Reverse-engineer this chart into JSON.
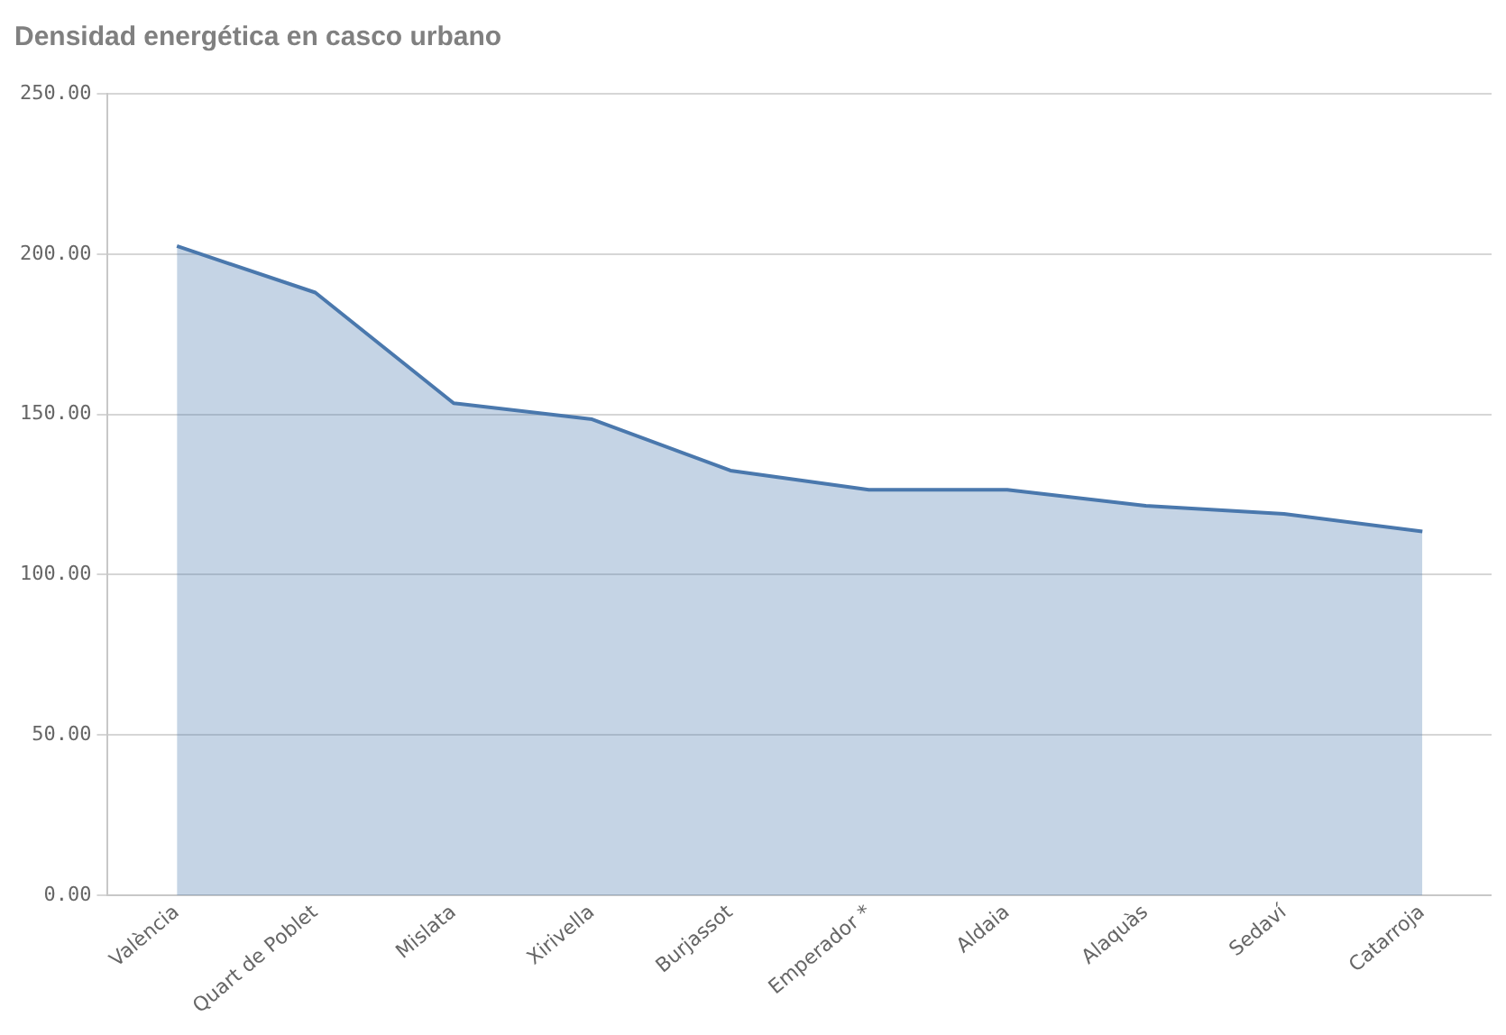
{
  "chart_data": {
    "type": "area",
    "title": "Densidad energética en casco urbano",
    "categories": [
      "València",
      "Quart de Poblet",
      "Mislata",
      "Xirivella",
      "Burjassot",
      "Emperador *",
      "Aldaia",
      "Alaquàs",
      "Sedaví",
      "Catarroja"
    ],
    "series": [
      {
        "color": "#4a78ad",
        "values": [
          202.5,
          188,
          153.5,
          148.5,
          132.5,
          126.5,
          126.5,
          121.5,
          119,
          113.5
        ]
      }
    ],
    "ylim": [
      0,
      250
    ],
    "yticks": [
      {
        "value": 0,
        "label": "0.00"
      },
      {
        "value": 50,
        "label": "50.00"
      },
      {
        "value": 100,
        "label": "100.00"
      },
      {
        "value": 150,
        "label": "150.00"
      },
      {
        "value": 200,
        "label": "200.00"
      },
      {
        "value": 250,
        "label": "250.00"
      }
    ],
    "grid": "y",
    "legend": false
  }
}
